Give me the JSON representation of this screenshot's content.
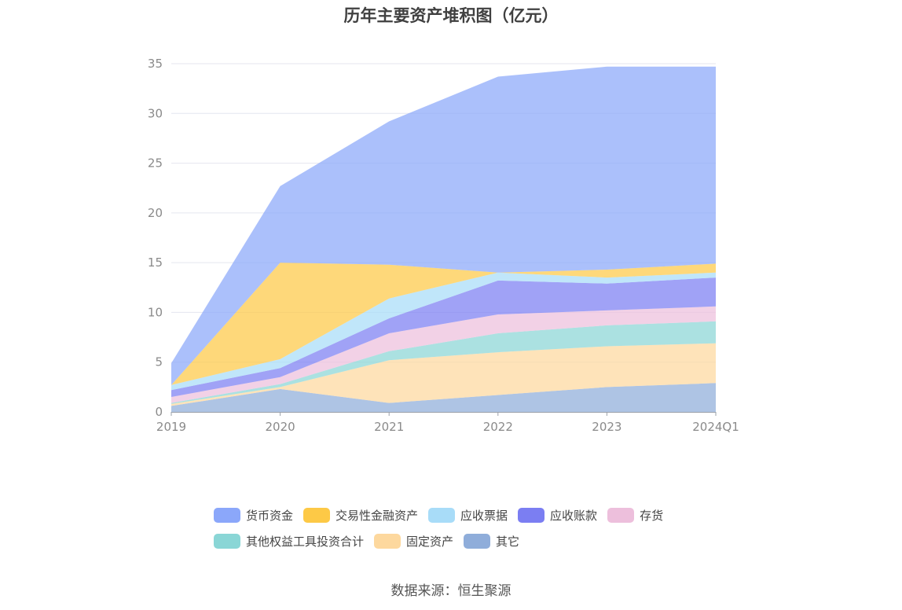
{
  "title": "历年主要资产堆积图（亿元）",
  "source": "数据来源：恒生聚源",
  "chart_data": {
    "type": "area",
    "stacked": true,
    "categories": [
      "2019",
      "2020",
      "2021",
      "2022",
      "2023",
      "2024Q1"
    ],
    "ylim": [
      0,
      35
    ],
    "yticks": [
      0,
      5,
      10,
      15,
      20,
      25,
      30,
      35
    ],
    "grid": true,
    "legend_position": "bottom",
    "series": [
      {
        "name": "其它",
        "color": "#8fadda",
        "values": [
          0.6,
          2.3,
          0.9,
          1.7,
          2.5,
          2.9
        ]
      },
      {
        "name": "固定资产",
        "color": "#fdd89e",
        "values": [
          0.2,
          0.2,
          4.3,
          4.3,
          4.1,
          4.0
        ]
      },
      {
        "name": "其他权益工具投资合计",
        "color": "#8ad6d6",
        "values": [
          0.1,
          0.3,
          0.9,
          1.9,
          2.1,
          2.2
        ]
      },
      {
        "name": "存货",
        "color": "#edbfdc",
        "values": [
          0.6,
          0.7,
          1.8,
          1.9,
          1.5,
          1.5
        ]
      },
      {
        "name": "应收账款",
        "color": "#7b7ef2",
        "values": [
          0.7,
          0.9,
          1.5,
          3.4,
          2.7,
          2.9
        ]
      },
      {
        "name": "应收票据",
        "color": "#a8dcf8",
        "values": [
          0.5,
          0.9,
          2.0,
          0.8,
          0.6,
          0.5
        ]
      },
      {
        "name": "交易性金融资产",
        "color": "#fdc946",
        "values": [
          0.0,
          9.7,
          3.4,
          0.0,
          0.8,
          0.9
        ]
      },
      {
        "name": "货币资金",
        "color": "#8ba7fa",
        "values": [
          2.2,
          7.7,
          14.4,
          19.7,
          20.4,
          19.8
        ]
      }
    ]
  },
  "legend": {
    "row1": [
      {
        "name": "货币资金",
        "color": "#8ba7fa"
      },
      {
        "name": "交易性金融资产",
        "color": "#fdc946"
      },
      {
        "name": "应收票据",
        "color": "#a8dcf8"
      },
      {
        "name": "应收账款",
        "color": "#7b7ef2"
      },
      {
        "name": "存货",
        "color": "#edbfdc"
      }
    ],
    "row2": [
      {
        "name": "其他权益工具投资合计",
        "color": "#8ad6d6"
      },
      {
        "name": "固定资产",
        "color": "#fdd89e"
      },
      {
        "name": "其它",
        "color": "#8fadda"
      }
    ]
  }
}
